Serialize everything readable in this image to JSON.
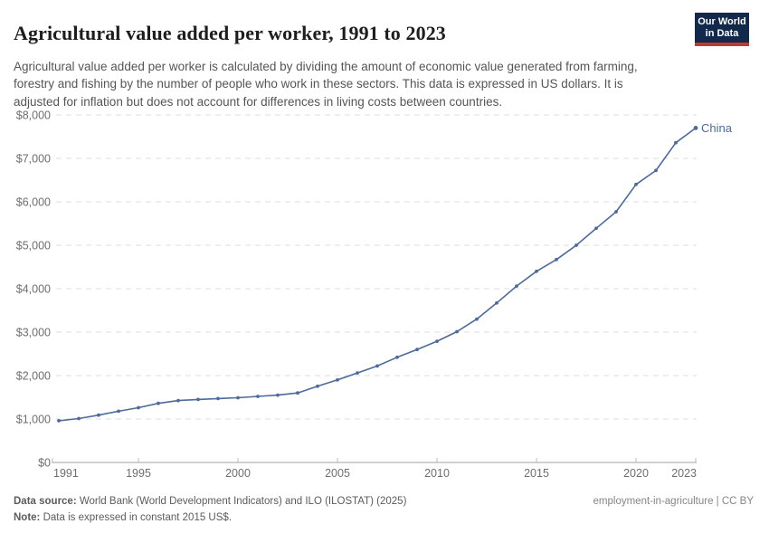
{
  "header": {
    "title": "Agricultural value added per worker, 1991 to 2023",
    "subtitle": "Agricultural value added per worker is calculated by dividing the amount of economic value generated from farming, forestry and fishing by the number of people who work in these sectors. This data is expressed in US dollars. It is adjusted for inflation but does not account for differences in living costs between countries.",
    "logo": {
      "line1": "Our World",
      "line2": "in Data"
    }
  },
  "chart_data": {
    "type": "line",
    "title": "Agricultural value added per worker, 1991 to 2023",
    "xlabel": "",
    "ylabel": "",
    "xlim": [
      1991,
      2023
    ],
    "ylim": [
      0,
      8000
    ],
    "grid": "horizontal-dashed",
    "legend_position": "end-of-line-label",
    "x_ticks": [
      1991,
      1995,
      2000,
      2005,
      2010,
      2015,
      2020,
      2023
    ],
    "y_ticks": [
      0,
      1000,
      2000,
      3000,
      4000,
      5000,
      6000,
      7000,
      8000
    ],
    "y_tick_prefix": "$",
    "series": [
      {
        "name": "China",
        "x": [
          1991,
          1992,
          1993,
          1994,
          1995,
          1996,
          1997,
          1998,
          1999,
          2000,
          2001,
          2002,
          2003,
          2004,
          2005,
          2006,
          2007,
          2008,
          2009,
          2010,
          2011,
          2012,
          2013,
          2014,
          2015,
          2016,
          2017,
          2018,
          2019,
          2020,
          2021,
          2022,
          2023
        ],
        "values": [
          960,
          1010,
          1090,
          1180,
          1260,
          1360,
          1425,
          1450,
          1470,
          1490,
          1520,
          1550,
          1600,
          1755,
          1900,
          2060,
          2220,
          2420,
          2600,
          2790,
          3010,
          3300,
          3670,
          4060,
          4400,
          4670,
          5000,
          5390,
          5770,
          6400,
          6720,
          7360,
          7700
        ]
      }
    ],
    "entity_label": "China"
  },
  "footer": {
    "source_label": "Data source:",
    "source_text": "World Bank (World Development Indicators) and ILO (ILOSTAT) (2025)",
    "note_label": "Note:",
    "note_text": "Data is expressed in constant 2015 US$.",
    "right_text": "employment-in-agriculture | CC BY"
  },
  "colors": {
    "line": "#4c6a9c",
    "entity_label": "#4c6a9c",
    "grid": "#dcdcdc",
    "axis": "#a1a1a1",
    "axis_tick": "#bcbcbc",
    "tick_label": "#6e6e6e",
    "title": "#1d1d1d",
    "subtitle": "#555555",
    "logo_bg": "#12294b",
    "logo_stripe": "#c0392b"
  }
}
